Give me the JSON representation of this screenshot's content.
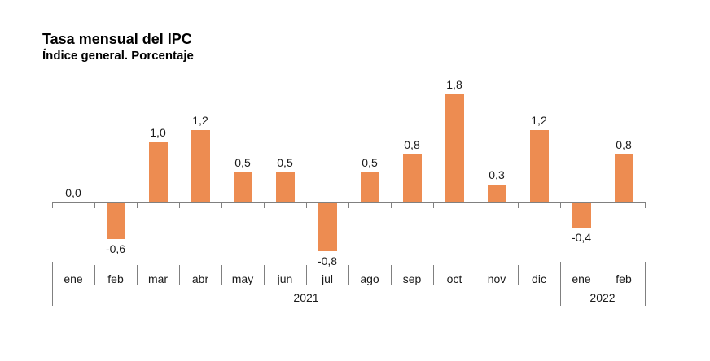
{
  "chart_data": {
    "type": "bar",
    "title": "Tasa mensual del IPC",
    "subtitle": "Índice general. Porcentaje",
    "categories": [
      "ene",
      "feb",
      "mar",
      "abr",
      "may",
      "jun",
      "jul",
      "ago",
      "sep",
      "oct",
      "nov",
      "dic",
      "ene",
      "feb"
    ],
    "values": [
      0.0,
      -0.6,
      1.0,
      1.2,
      0.5,
      0.5,
      -0.8,
      0.5,
      0.8,
      1.8,
      0.3,
      1.2,
      -0.4,
      0.8
    ],
    "value_labels": [
      "0,0",
      "-0,6",
      "1,0",
      "1,2",
      "0,5",
      "0,5",
      "-0,8",
      "0,5",
      "0,8",
      "1,8",
      "0,3",
      "1,2",
      "-0,4",
      "0,8"
    ],
    "year_groups": [
      {
        "label": "2021",
        "start": 0,
        "count": 12
      },
      {
        "label": "2022",
        "start": 12,
        "count": 2
      }
    ],
    "xlabel": "",
    "ylabel": "",
    "ylim": [
      -1.0,
      2.0
    ],
    "grid": false,
    "legend": false,
    "bar_color": "#ED8C51",
    "axis_color": "#808080",
    "text_color": "#1A1A1A"
  }
}
